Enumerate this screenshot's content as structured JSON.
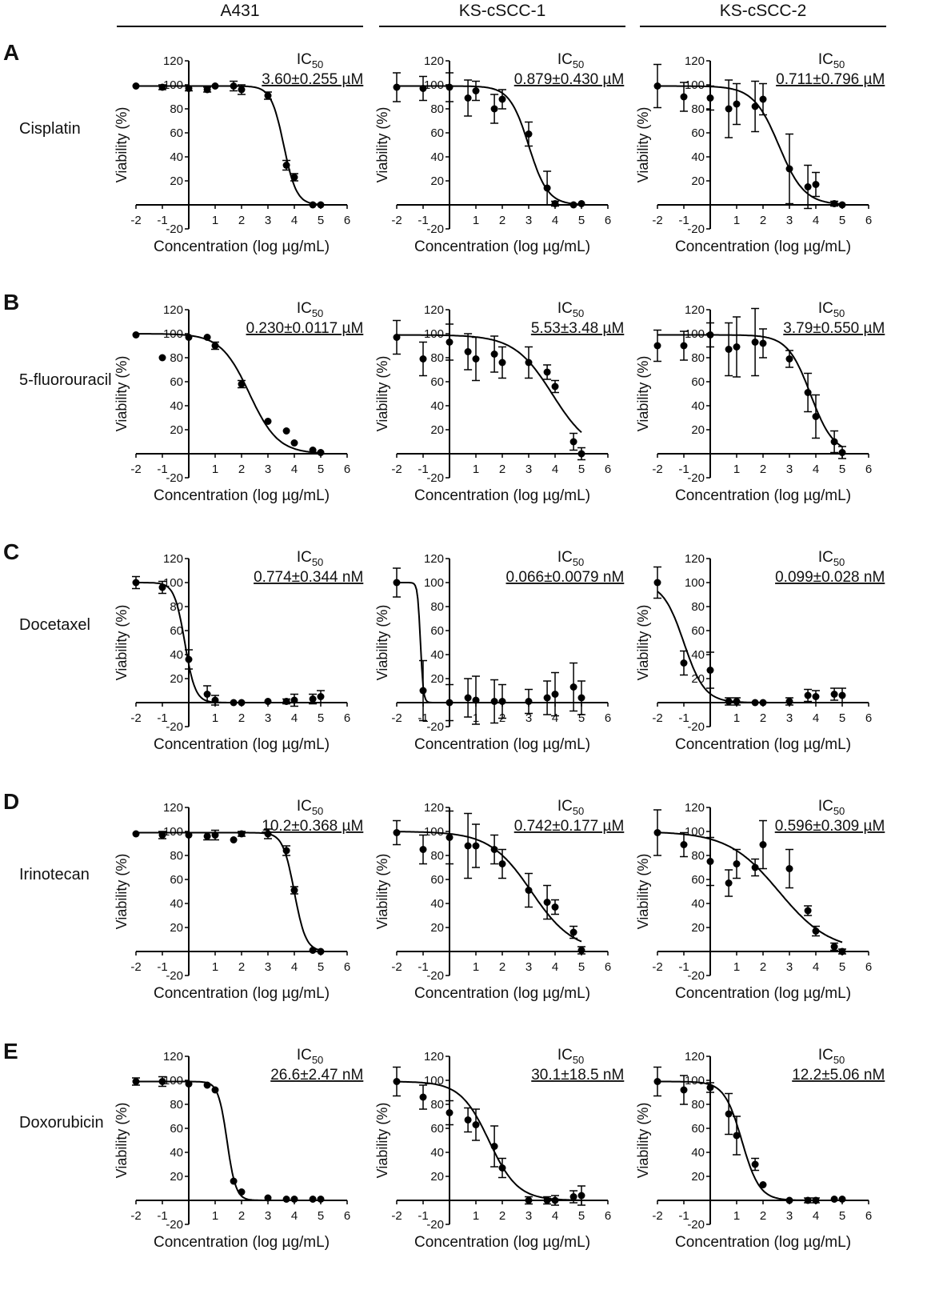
{
  "columns": [
    "A431",
    "KS-cSCC-1",
    "KS-cSCC-2"
  ],
  "rows": [
    {
      "letter": "A",
      "drug": "Cisplatin"
    },
    {
      "letter": "B",
      "drug": "5-fluorouracil"
    },
    {
      "letter": "C",
      "drug": "Docetaxel"
    },
    {
      "letter": "D",
      "drug": "Irinotecan"
    },
    {
      "letter": "E",
      "drug": "Doxorubicin"
    }
  ],
  "shared": {
    "ylabel": "Viability (%)",
    "xlabel": "Concentration (log µg/mL)",
    "ic_label_main": "IC",
    "ic_label_sub": "50",
    "xticks": [
      -2,
      -1,
      1,
      2,
      3,
      4,
      5,
      6
    ],
    "yticks": [
      120,
      100,
      80,
      60,
      40,
      20,
      -20
    ],
    "xlim": [
      -2,
      6
    ],
    "ylim": [
      -20,
      120
    ]
  },
  "chart_data": [
    {
      "type": "scatter",
      "row": "A",
      "column": "A431",
      "drug": "Cisplatin",
      "ic50": "3.60±0.255 µM",
      "fit": {
        "top": 99,
        "bottom": 0,
        "logec50": 3.6,
        "slope": 1.8
      },
      "points": [
        [
          -2,
          99,
          1
        ],
        [
          -1,
          98,
          2
        ],
        [
          0,
          97,
          2
        ],
        [
          0.7,
          96,
          2
        ],
        [
          1,
          99,
          1
        ],
        [
          1.7,
          99,
          4
        ],
        [
          2,
          96,
          4
        ],
        [
          3,
          91,
          3
        ],
        [
          3.7,
          33,
          4
        ],
        [
          4,
          23,
          3
        ],
        [
          4.7,
          0,
          1
        ],
        [
          5,
          0,
          1
        ]
      ]
    },
    {
      "type": "scatter",
      "row": "A",
      "column": "KS-cSCC-1",
      "drug": "Cisplatin",
      "ic50": "0.879±0.430 µM",
      "fit": {
        "top": 99,
        "bottom": 0,
        "logec50": 3.0,
        "slope": 1.2
      },
      "points": [
        [
          -2,
          98,
          12
        ],
        [
          -1,
          97,
          10
        ],
        [
          0,
          98,
          12
        ],
        [
          0.7,
          89,
          15
        ],
        [
          1,
          95,
          8
        ],
        [
          1.7,
          80,
          12
        ],
        [
          2,
          88,
          8
        ],
        [
          3,
          59,
          10
        ],
        [
          3.7,
          14,
          14
        ],
        [
          4,
          1,
          2
        ],
        [
          4.7,
          0,
          1
        ],
        [
          5,
          1,
          1
        ]
      ]
    },
    {
      "type": "scatter",
      "row": "A",
      "column": "KS-cSCC-2",
      "drug": "Cisplatin",
      "ic50": "0.711±0.796 µM",
      "fit": {
        "top": 99,
        "bottom": 0,
        "logec50": 2.6,
        "slope": 0.9
      },
      "points": [
        [
          -2,
          99,
          18
        ],
        [
          -1,
          90,
          12
        ],
        [
          0,
          89,
          10
        ],
        [
          0.7,
          80,
          24
        ],
        [
          1,
          84,
          17
        ],
        [
          1.7,
          82,
          21
        ],
        [
          2,
          88,
          13
        ],
        [
          3,
          30,
          29
        ],
        [
          3.7,
          15,
          18
        ],
        [
          4,
          17,
          10
        ],
        [
          4.7,
          1,
          2
        ],
        [
          5,
          0,
          1
        ]
      ]
    },
    {
      "type": "scatter",
      "row": "B",
      "column": "A431",
      "drug": "5-fluorouracil",
      "ic50": "0.230±0.0117 µM",
      "fit": {
        "top": 100,
        "bottom": 0,
        "logec50": 2.3,
        "slope": 0.8
      },
      "points": [
        [
          -2,
          99,
          1
        ],
        [
          -1,
          80,
          1
        ],
        [
          0,
          97,
          1
        ],
        [
          0.7,
          97,
          1
        ],
        [
          1,
          90,
          3
        ],
        [
          2,
          58,
          3
        ],
        [
          3,
          27,
          1
        ],
        [
          3.7,
          19,
          1
        ],
        [
          4,
          9,
          1
        ],
        [
          4.7,
          3,
          1
        ],
        [
          5,
          1,
          1
        ]
      ]
    },
    {
      "type": "scatter",
      "row": "B",
      "column": "KS-cSCC-1",
      "drug": "5-fluorouracil",
      "ic50": "5.53±3.48 µM",
      "fit": {
        "top": 99,
        "bottom": 0,
        "logec50": 3.9,
        "slope": 0.6
      },
      "points": [
        [
          -2,
          97,
          14
        ],
        [
          -1,
          79,
          14
        ],
        [
          0,
          93,
          15
        ],
        [
          0.7,
          85,
          15
        ],
        [
          1,
          79,
          18
        ],
        [
          1.7,
          83,
          15
        ],
        [
          2,
          76,
          13
        ],
        [
          3,
          76,
          13
        ],
        [
          3.7,
          68,
          6
        ],
        [
          4,
          56,
          5
        ],
        [
          4.7,
          10,
          7
        ],
        [
          5,
          0,
          5
        ]
      ]
    },
    {
      "type": "scatter",
      "row": "B",
      "column": "KS-cSCC-2",
      "drug": "5-fluorouracil",
      "ic50": "3.79±0.550 µM",
      "fit": {
        "top": 99,
        "bottom": 0,
        "logec50": 3.8,
        "slope": 1.0
      },
      "points": [
        [
          -2,
          90,
          13
        ],
        [
          -1,
          90,
          12
        ],
        [
          0,
          99,
          10
        ],
        [
          0.7,
          87,
          22
        ],
        [
          1,
          89,
          25
        ],
        [
          1.7,
          93,
          28
        ],
        [
          2,
          92,
          12
        ],
        [
          3,
          79,
          7
        ],
        [
          3.7,
          51,
          16
        ],
        [
          4,
          31,
          18
        ],
        [
          4.7,
          10,
          9
        ],
        [
          5,
          1,
          5
        ]
      ]
    },
    {
      "type": "scatter",
      "row": "C",
      "column": "A431",
      "drug": "Docetaxel",
      "ic50": "0.774±0.344 nM",
      "fit": {
        "top": 100,
        "bottom": 0,
        "logec50": -0.15,
        "slope": 2.2
      },
      "points": [
        [
          -2,
          100,
          5
        ],
        [
          -1,
          96,
          5
        ],
        [
          0,
          36,
          8
        ],
        [
          0.7,
          7,
          7
        ],
        [
          1,
          2,
          4
        ],
        [
          1.7,
          0,
          1
        ],
        [
          2,
          0,
          1
        ],
        [
          3,
          1,
          1
        ],
        [
          3.7,
          1,
          2
        ],
        [
          4,
          2,
          5
        ],
        [
          4.7,
          3,
          4
        ],
        [
          5,
          5,
          5
        ]
      ]
    },
    {
      "type": "scatter",
      "row": "C",
      "column": "KS-cSCC-1",
      "drug": "Docetaxel",
      "ic50": "0.066±0.0079 nM",
      "fit": {
        "top": 100,
        "bottom": 0,
        "logec50": -1.1,
        "slope": 8.0
      },
      "points": [
        [
          -2,
          100,
          12
        ],
        [
          -1,
          10,
          25
        ],
        [
          0,
          0,
          15
        ],
        [
          0.7,
          4,
          16
        ],
        [
          1,
          2,
          20
        ],
        [
          1.7,
          1,
          18
        ],
        [
          2,
          1,
          14
        ],
        [
          3,
          1,
          10
        ],
        [
          3.7,
          4,
          14
        ],
        [
          4,
          7,
          18
        ],
        [
          4.7,
          13,
          20
        ],
        [
          5,
          4,
          14
        ]
      ]
    },
    {
      "type": "scatter",
      "row": "C",
      "column": "KS-cSCC-2",
      "drug": "Docetaxel",
      "ic50": "0.099±0.028 nM",
      "fit": {
        "top": 100,
        "bottom": 0,
        "logec50": -1.0,
        "slope": 1.1
      },
      "points": [
        [
          -2,
          100,
          13
        ],
        [
          -1,
          33,
          10
        ],
        [
          0,
          27,
          15
        ],
        [
          0.7,
          1,
          3
        ],
        [
          1,
          1,
          3
        ],
        [
          1.7,
          0,
          1
        ],
        [
          2,
          0,
          1
        ],
        [
          3,
          1,
          3
        ],
        [
          3.7,
          6,
          5
        ],
        [
          4,
          5,
          5
        ],
        [
          4.7,
          7,
          5
        ],
        [
          5,
          6,
          6
        ]
      ]
    },
    {
      "type": "scatter",
      "row": "D",
      "column": "A431",
      "drug": "Irinotecan",
      "ic50": "10.2±0.368 µM",
      "fit": {
        "top": 99,
        "bottom": 0,
        "logec50": 4.0,
        "slope": 2.0
      },
      "points": [
        [
          -2,
          98,
          1
        ],
        [
          -1,
          97,
          3
        ],
        [
          0,
          97,
          1
        ],
        [
          0.7,
          96,
          3
        ],
        [
          1,
          97,
          4
        ],
        [
          1.7,
          93,
          1
        ],
        [
          2,
          98,
          2
        ],
        [
          3,
          98,
          4
        ],
        [
          3.7,
          84,
          4
        ],
        [
          4,
          51,
          3
        ],
        [
          4.7,
          1,
          1
        ],
        [
          5,
          0,
          1
        ]
      ]
    },
    {
      "type": "scatter",
      "row": "D",
      "column": "KS-cSCC-1",
      "drug": "Irinotecan",
      "ic50": "0.742±0.177 µM",
      "fit": {
        "top": 100,
        "bottom": 0,
        "logec50": 3.1,
        "slope": 0.55
      },
      "points": [
        [
          -2,
          99,
          10
        ],
        [
          -1,
          85,
          12
        ],
        [
          0,
          95,
          22
        ],
        [
          0.7,
          88,
          27
        ],
        [
          1,
          88,
          18
        ],
        [
          1.7,
          85,
          12
        ],
        [
          2,
          73,
          12
        ],
        [
          3,
          51,
          14
        ],
        [
          3.7,
          41,
          14
        ],
        [
          4,
          37,
          6
        ],
        [
          4.7,
          16,
          5
        ],
        [
          5,
          1,
          3
        ]
      ]
    },
    {
      "type": "scatter",
      "row": "D",
      "column": "KS-cSCC-2",
      "drug": "Irinotecan",
      "ic50": "0.596±0.309 µM",
      "fit": {
        "top": 100,
        "bottom": 0,
        "logec50": 2.6,
        "slope": 0.45
      },
      "points": [
        [
          -2,
          99,
          19
        ],
        [
          -1,
          89,
          10
        ],
        [
          0,
          75,
          20
        ],
        [
          0.7,
          57,
          11
        ],
        [
          1,
          73,
          12
        ],
        [
          1.7,
          70,
          7
        ],
        [
          2,
          89,
          20
        ],
        [
          3,
          69,
          16
        ],
        [
          3.7,
          34,
          4
        ],
        [
          4,
          17,
          4
        ],
        [
          4.7,
          4,
          3
        ],
        [
          5,
          0,
          2
        ]
      ]
    },
    {
      "type": "scatter",
      "row": "E",
      "column": "A431",
      "drug": "Doxorubicin",
      "ic50": "26.6±2.47 nM",
      "fit": {
        "top": 99,
        "bottom": 0,
        "logec50": 1.45,
        "slope": 2.6
      },
      "points": [
        [
          -2,
          99,
          3
        ],
        [
          -1,
          99,
          4
        ],
        [
          0,
          97,
          1
        ],
        [
          0.7,
          96,
          1
        ],
        [
          1,
          92,
          1
        ],
        [
          1.7,
          16,
          1
        ],
        [
          2,
          7,
          1
        ],
        [
          3,
          2,
          1
        ],
        [
          3.7,
          1,
          1
        ],
        [
          4,
          1,
          1
        ],
        [
          4.7,
          1,
          1
        ],
        [
          5,
          1,
          1
        ]
      ]
    },
    {
      "type": "scatter",
      "row": "E",
      "column": "KS-cSCC-1",
      "drug": "Doxorubicin",
      "ic50": "30.1±18.5 nM",
      "fit": {
        "top": 99,
        "bottom": 0,
        "logec50": 1.5,
        "slope": 0.8
      },
      "points": [
        [
          -2,
          99,
          12
        ],
        [
          -1,
          86,
          10
        ],
        [
          0,
          73,
          10
        ],
        [
          0.7,
          67,
          10
        ],
        [
          1,
          63,
          13
        ],
        [
          1.7,
          45,
          17
        ],
        [
          2,
          27,
          8
        ],
        [
          3,
          0,
          3
        ],
        [
          3.7,
          0,
          3
        ],
        [
          4,
          0,
          4
        ],
        [
          4.7,
          3,
          5
        ],
        [
          5,
          4,
          8
        ]
      ]
    },
    {
      "type": "scatter",
      "row": "E",
      "column": "KS-cSCC-2",
      "drug": "Doxorubicin",
      "ic50": "12.2±5.06 nM",
      "fit": {
        "top": 99,
        "bottom": 0,
        "logec50": 1.2,
        "slope": 1.3
      },
      "points": [
        [
          -2,
          99,
          12
        ],
        [
          -1,
          92,
          12
        ],
        [
          0,
          94,
          4
        ],
        [
          0.7,
          72,
          17
        ],
        [
          1,
          54,
          16
        ],
        [
          1.7,
          30,
          5
        ],
        [
          2,
          13,
          1
        ],
        [
          3,
          0,
          1
        ],
        [
          3.7,
          0,
          2
        ],
        [
          4,
          0,
          2
        ],
        [
          4.7,
          1,
          1
        ],
        [
          5,
          1,
          1
        ]
      ]
    }
  ]
}
